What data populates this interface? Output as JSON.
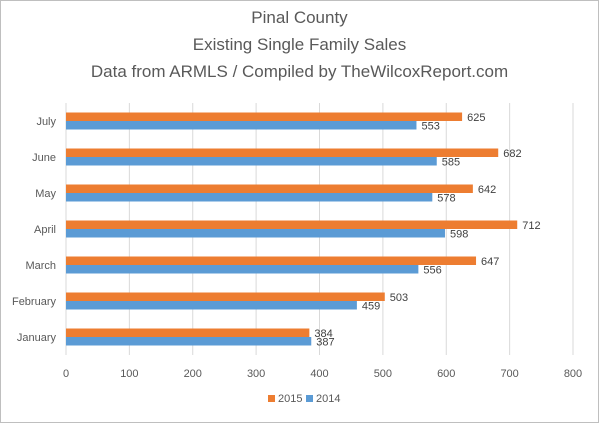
{
  "chart_data": {
    "type": "bar",
    "orientation": "horizontal",
    "title": [
      "Pinal County",
      "Existing Single Family Sales",
      "Data from ARMLS / Compiled by TheWilcoxReport.com"
    ],
    "categories": [
      "July",
      "June",
      "May",
      "April",
      "March",
      "February",
      "January"
    ],
    "series": [
      {
        "name": "2015",
        "color": "#ed7d31",
        "values": [
          625,
          682,
          642,
          712,
          647,
          503,
          384
        ]
      },
      {
        "name": "2014",
        "color": "#5b9bd5",
        "values": [
          553,
          585,
          578,
          598,
          556,
          459,
          387
        ]
      }
    ],
    "xlim": [
      0,
      800
    ],
    "xticks": [
      0,
      100,
      200,
      300,
      400,
      500,
      600,
      700,
      800
    ],
    "grid": true,
    "gridline_color": "#d9d9d9",
    "legend_position": "bottom",
    "xlabel": "",
    "ylabel": ""
  }
}
